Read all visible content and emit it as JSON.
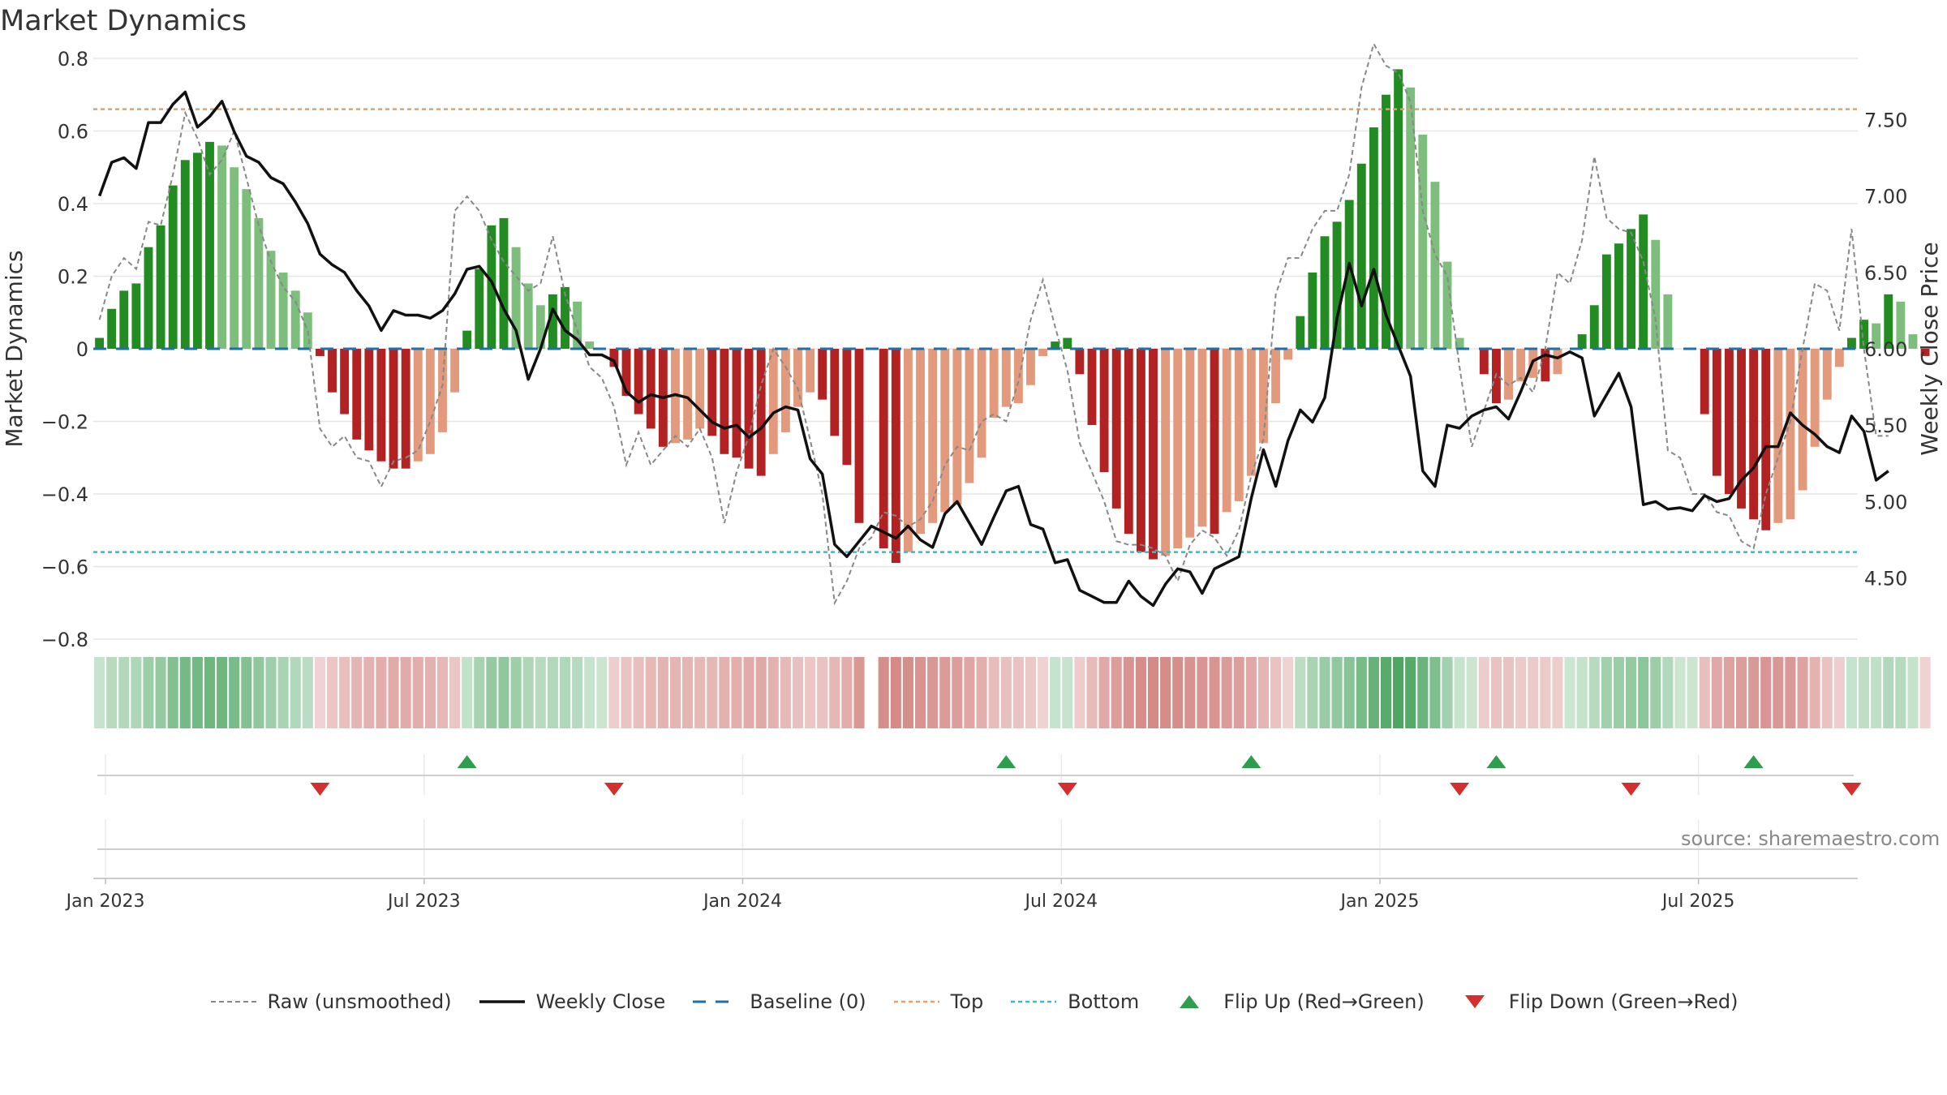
{
  "title": "Market Dynamics",
  "source": "source: sharemaestro.com",
  "colors": {
    "dark_green": "#228B22",
    "light_green": "#7DBE7D",
    "dark_red": "#B22222",
    "light_red": "#E39A7C",
    "top_line": "#E0A070",
    "bottom_line": "#30BFCF",
    "baseline": "#1F6FA8",
    "close": "#111111",
    "raw": "#888888",
    "flip_up": "#2E9E4E",
    "flip_down": "#D32F2F"
  },
  "legend": [
    {
      "key": "raw",
      "label": "Raw (unsmoothed)"
    },
    {
      "key": "close",
      "label": "Weekly Close"
    },
    {
      "key": "baseline",
      "label": "Baseline (0)"
    },
    {
      "key": "top",
      "label": "Top"
    },
    {
      "key": "bottom",
      "label": "Bottom"
    },
    {
      "key": "flip_up",
      "label": "Flip Up (Red→Green)"
    },
    {
      "key": "flip_down",
      "label": "Flip Down (Green→Red)"
    }
  ],
  "chart_data": {
    "type": "bar",
    "title": "Market Dynamics",
    "ylabel_left": "Market Dynamics",
    "ylabel_right": "Weekly Close Price",
    "ylim_left": [
      -0.8,
      0.8
    ],
    "ylim_right": [
      4.1,
      7.9
    ],
    "yticks_left": [
      "0.8",
      "0.6",
      "0.4",
      "0.2",
      "0",
      "−0.2",
      "−0.4",
      "−0.6",
      "−0.8"
    ],
    "yticks_left_values": [
      0.8,
      0.6,
      0.4,
      0.2,
      0,
      -0.2,
      -0.4,
      -0.6,
      -0.8
    ],
    "yticks_right": [
      "7.50",
      "7.00",
      "6.50",
      "6.00",
      "5.50",
      "5.00",
      "4.50"
    ],
    "yticks_right_values": [
      7.5,
      7.0,
      6.5,
      6.0,
      5.5,
      5.0,
      4.5
    ],
    "x_tick_labels": [
      "Jan 2023",
      "Jul 2023",
      "Jan 2024",
      "Jul 2024",
      "Jan 2025",
      "Jul 2025"
    ],
    "x_tick_weeks": [
      1,
      27,
      53,
      79,
      105,
      131
    ],
    "top_level": 0.66,
    "bottom_level": -0.56,
    "baseline": 0,
    "grid": true,
    "legend_position": "bottom",
    "week_count": 144,
    "smoothed": [
      0.03,
      0.11,
      0.16,
      0.18,
      0.28,
      0.34,
      0.45,
      0.52,
      0.54,
      0.57,
      0.56,
      0.5,
      0.44,
      0.36,
      0.27,
      0.21,
      0.16,
      0.1,
      -0.02,
      -0.12,
      -0.18,
      -0.25,
      -0.28,
      -0.31,
      -0.33,
      -0.33,
      -0.31,
      -0.29,
      -0.23,
      -0.12,
      0.05,
      0.22,
      0.34,
      0.36,
      0.28,
      0.18,
      0.12,
      0.15,
      0.17,
      0.13,
      0.02,
      0.0,
      -0.05,
      -0.13,
      -0.18,
      -0.22,
      -0.27,
      -0.26,
      -0.25,
      -0.22,
      -0.24,
      -0.29,
      -0.3,
      -0.33,
      -0.35,
      -0.29,
      -0.23,
      -0.16,
      -0.12,
      -0.14,
      -0.24,
      -0.32,
      -0.48,
      0.0,
      -0.55,
      -0.59,
      -0.56,
      -0.51,
      -0.48,
      -0.45,
      -0.43,
      -0.37,
      -0.3,
      -0.19,
      -0.16,
      -0.15,
      -0.1,
      -0.02,
      0.02,
      0.03,
      -0.07,
      -0.21,
      -0.34,
      -0.44,
      -0.51,
      -0.56,
      -0.58,
      -0.57,
      -0.55,
      -0.52,
      -0.49,
      -0.51,
      -0.45,
      -0.42,
      -0.35,
      -0.26,
      -0.15,
      -0.03,
      0.09,
      0.21,
      0.31,
      0.35,
      0.41,
      0.51,
      0.61,
      0.7,
      0.77,
      0.72,
      0.59,
      0.46,
      0.24,
      0.03,
      0.0,
      -0.07,
      -0.15,
      -0.14,
      -0.09,
      -0.08,
      -0.09,
      -0.07,
      0.0,
      0.04,
      0.12,
      0.26,
      0.29,
      0.33,
      0.37,
      0.3,
      0.15,
      0.0,
      0.0,
      -0.18,
      -0.35,
      -0.4,
      -0.44,
      -0.47,
      -0.5,
      -0.48,
      -0.47,
      -0.39,
      -0.27,
      -0.14,
      -0.05,
      0.03,
      0.08,
      0.07,
      0.15,
      0.13,
      0.04,
      -0.02
    ],
    "raw": [
      0.08,
      0.2,
      0.25,
      0.22,
      0.35,
      0.34,
      0.48,
      0.65,
      0.58,
      0.48,
      0.52,
      0.6,
      0.47,
      0.34,
      0.24,
      0.17,
      0.13,
      0.05,
      -0.22,
      -0.27,
      -0.24,
      -0.3,
      -0.31,
      -0.38,
      -0.31,
      -0.3,
      -0.28,
      -0.2,
      -0.1,
      0.38,
      0.42,
      0.38,
      0.3,
      0.24,
      0.2,
      0.16,
      0.18,
      0.31,
      0.15,
      0.05,
      -0.05,
      -0.08,
      -0.16,
      -0.32,
      -0.23,
      -0.32,
      -0.28,
      -0.24,
      -0.27,
      -0.22,
      -0.3,
      -0.48,
      -0.34,
      -0.24,
      -0.1,
      0.0,
      -0.05,
      -0.11,
      -0.25,
      -0.4,
      -0.7,
      -0.64,
      -0.55,
      -0.52,
      -0.45,
      -0.46,
      -0.49,
      -0.47,
      -0.42,
      -0.32,
      -0.27,
      -0.28,
      -0.2,
      -0.18,
      -0.2,
      -0.09,
      0.08,
      0.19,
      0.06,
      -0.06,
      -0.26,
      -0.34,
      -0.42,
      -0.53,
      -0.54,
      -0.54,
      -0.55,
      -0.57,
      -0.64,
      -0.54,
      -0.5,
      -0.52,
      -0.57,
      -0.5,
      -0.35,
      -0.25,
      0.15,
      0.25,
      0.25,
      0.33,
      0.38,
      0.38,
      0.48,
      0.72,
      0.84,
      0.78,
      0.76,
      0.68,
      0.38,
      0.26,
      0.2,
      -0.05,
      -0.27,
      -0.17,
      -0.07,
      -0.1,
      -0.08,
      -0.12,
      0.0,
      0.21,
      0.18,
      0.3,
      0.53,
      0.36,
      0.33,
      0.32,
      0.24,
      0.08,
      -0.28,
      -0.3,
      -0.4,
      -0.4,
      -0.45,
      -0.46,
      -0.53,
      -0.55,
      -0.4,
      -0.3,
      -0.2,
      0.0,
      0.18,
      0.16,
      0.05,
      0.33,
      0.0,
      -0.24,
      -0.24
    ],
    "weekly_close": [
      7.0,
      7.22,
      7.25,
      7.18,
      7.48,
      7.48,
      7.6,
      7.68,
      7.45,
      7.52,
      7.62,
      7.42,
      7.26,
      7.22,
      7.12,
      7.08,
      6.96,
      6.82,
      6.62,
      6.55,
      6.5,
      6.38,
      6.28,
      6.12,
      6.25,
      6.22,
      6.22,
      6.2,
      6.25,
      6.36,
      6.52,
      6.54,
      6.44,
      6.26,
      6.12,
      5.8,
      6.0,
      6.26,
      6.12,
      6.06,
      5.96,
      5.96,
      5.92,
      5.72,
      5.65,
      5.7,
      5.68,
      5.7,
      5.68,
      5.6,
      5.52,
      5.48,
      5.5,
      5.42,
      5.48,
      5.58,
      5.62,
      5.6,
      5.28,
      5.18,
      4.72,
      4.64,
      4.74,
      4.84,
      4.8,
      4.76,
      4.84,
      4.75,
      4.7,
      4.92,
      5.0,
      4.86,
      4.72,
      4.9,
      5.07,
      5.1,
      4.85,
      4.82,
      4.6,
      4.62,
      4.42,
      4.38,
      4.34,
      4.34,
      4.48,
      4.38,
      4.32,
      4.46,
      4.56,
      4.54,
      4.4,
      4.56,
      4.6,
      4.64,
      5.02,
      5.34,
      5.1,
      5.4,
      5.6,
      5.52,
      5.68,
      6.2,
      6.56,
      6.28,
      6.52,
      6.22,
      6.02,
      5.82,
      5.2,
      5.1,
      5.5,
      5.48,
      5.56,
      5.6,
      5.62,
      5.54,
      5.72,
      5.92,
      5.96,
      5.94,
      5.98,
      5.94,
      5.56,
      5.7,
      5.84,
      5.62,
      4.98,
      5.0,
      4.95,
      4.96,
      4.94,
      5.04,
      5.0,
      5.02,
      5.14,
      5.22,
      5.36,
      5.36,
      5.58,
      5.5,
      5.44,
      5.36,
      5.32,
      5.56,
      5.46,
      5.14,
      5.2
    ],
    "flip_up_weeks": [
      30,
      74,
      94,
      114,
      135
    ],
    "flip_down_weeks": [
      18,
      42,
      79,
      111,
      125,
      143
    ]
  }
}
